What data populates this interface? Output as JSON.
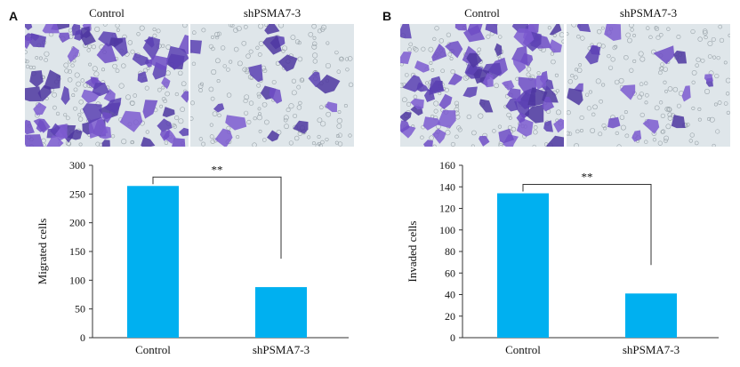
{
  "panels": [
    {
      "letter": "A",
      "images": [
        {
          "label": "Control",
          "density": "high"
        },
        {
          "label": "shPSMA7-3",
          "density": "low"
        }
      ]
    },
    {
      "letter": "B",
      "images": [
        {
          "label": "Control",
          "density": "high"
        },
        {
          "label": "shPSMA7-3",
          "density": "low"
        }
      ]
    }
  ],
  "colors": {
    "bar": "#00b0f0",
    "stain": "#6f4cc6",
    "background_field": "#dfe6ea"
  },
  "chart_data": [
    {
      "type": "bar",
      "categories": [
        "Control",
        "shPSMA7-3"
      ],
      "values": [
        264,
        88
      ],
      "ylabel": "Migrated cells",
      "ylim": [
        0,
        300
      ],
      "yticks": [
        0,
        50,
        100,
        150,
        200,
        250,
        300
      ],
      "significance": "**",
      "grid": false
    },
    {
      "type": "bar",
      "categories": [
        "Control",
        "shPSMA7-3"
      ],
      "values": [
        134,
        41
      ],
      "ylabel": "Invaded cells",
      "ylim": [
        0,
        160
      ],
      "yticks": [
        0,
        20,
        40,
        60,
        80,
        100,
        120,
        140,
        160
      ],
      "significance": "**",
      "grid": false
    }
  ]
}
